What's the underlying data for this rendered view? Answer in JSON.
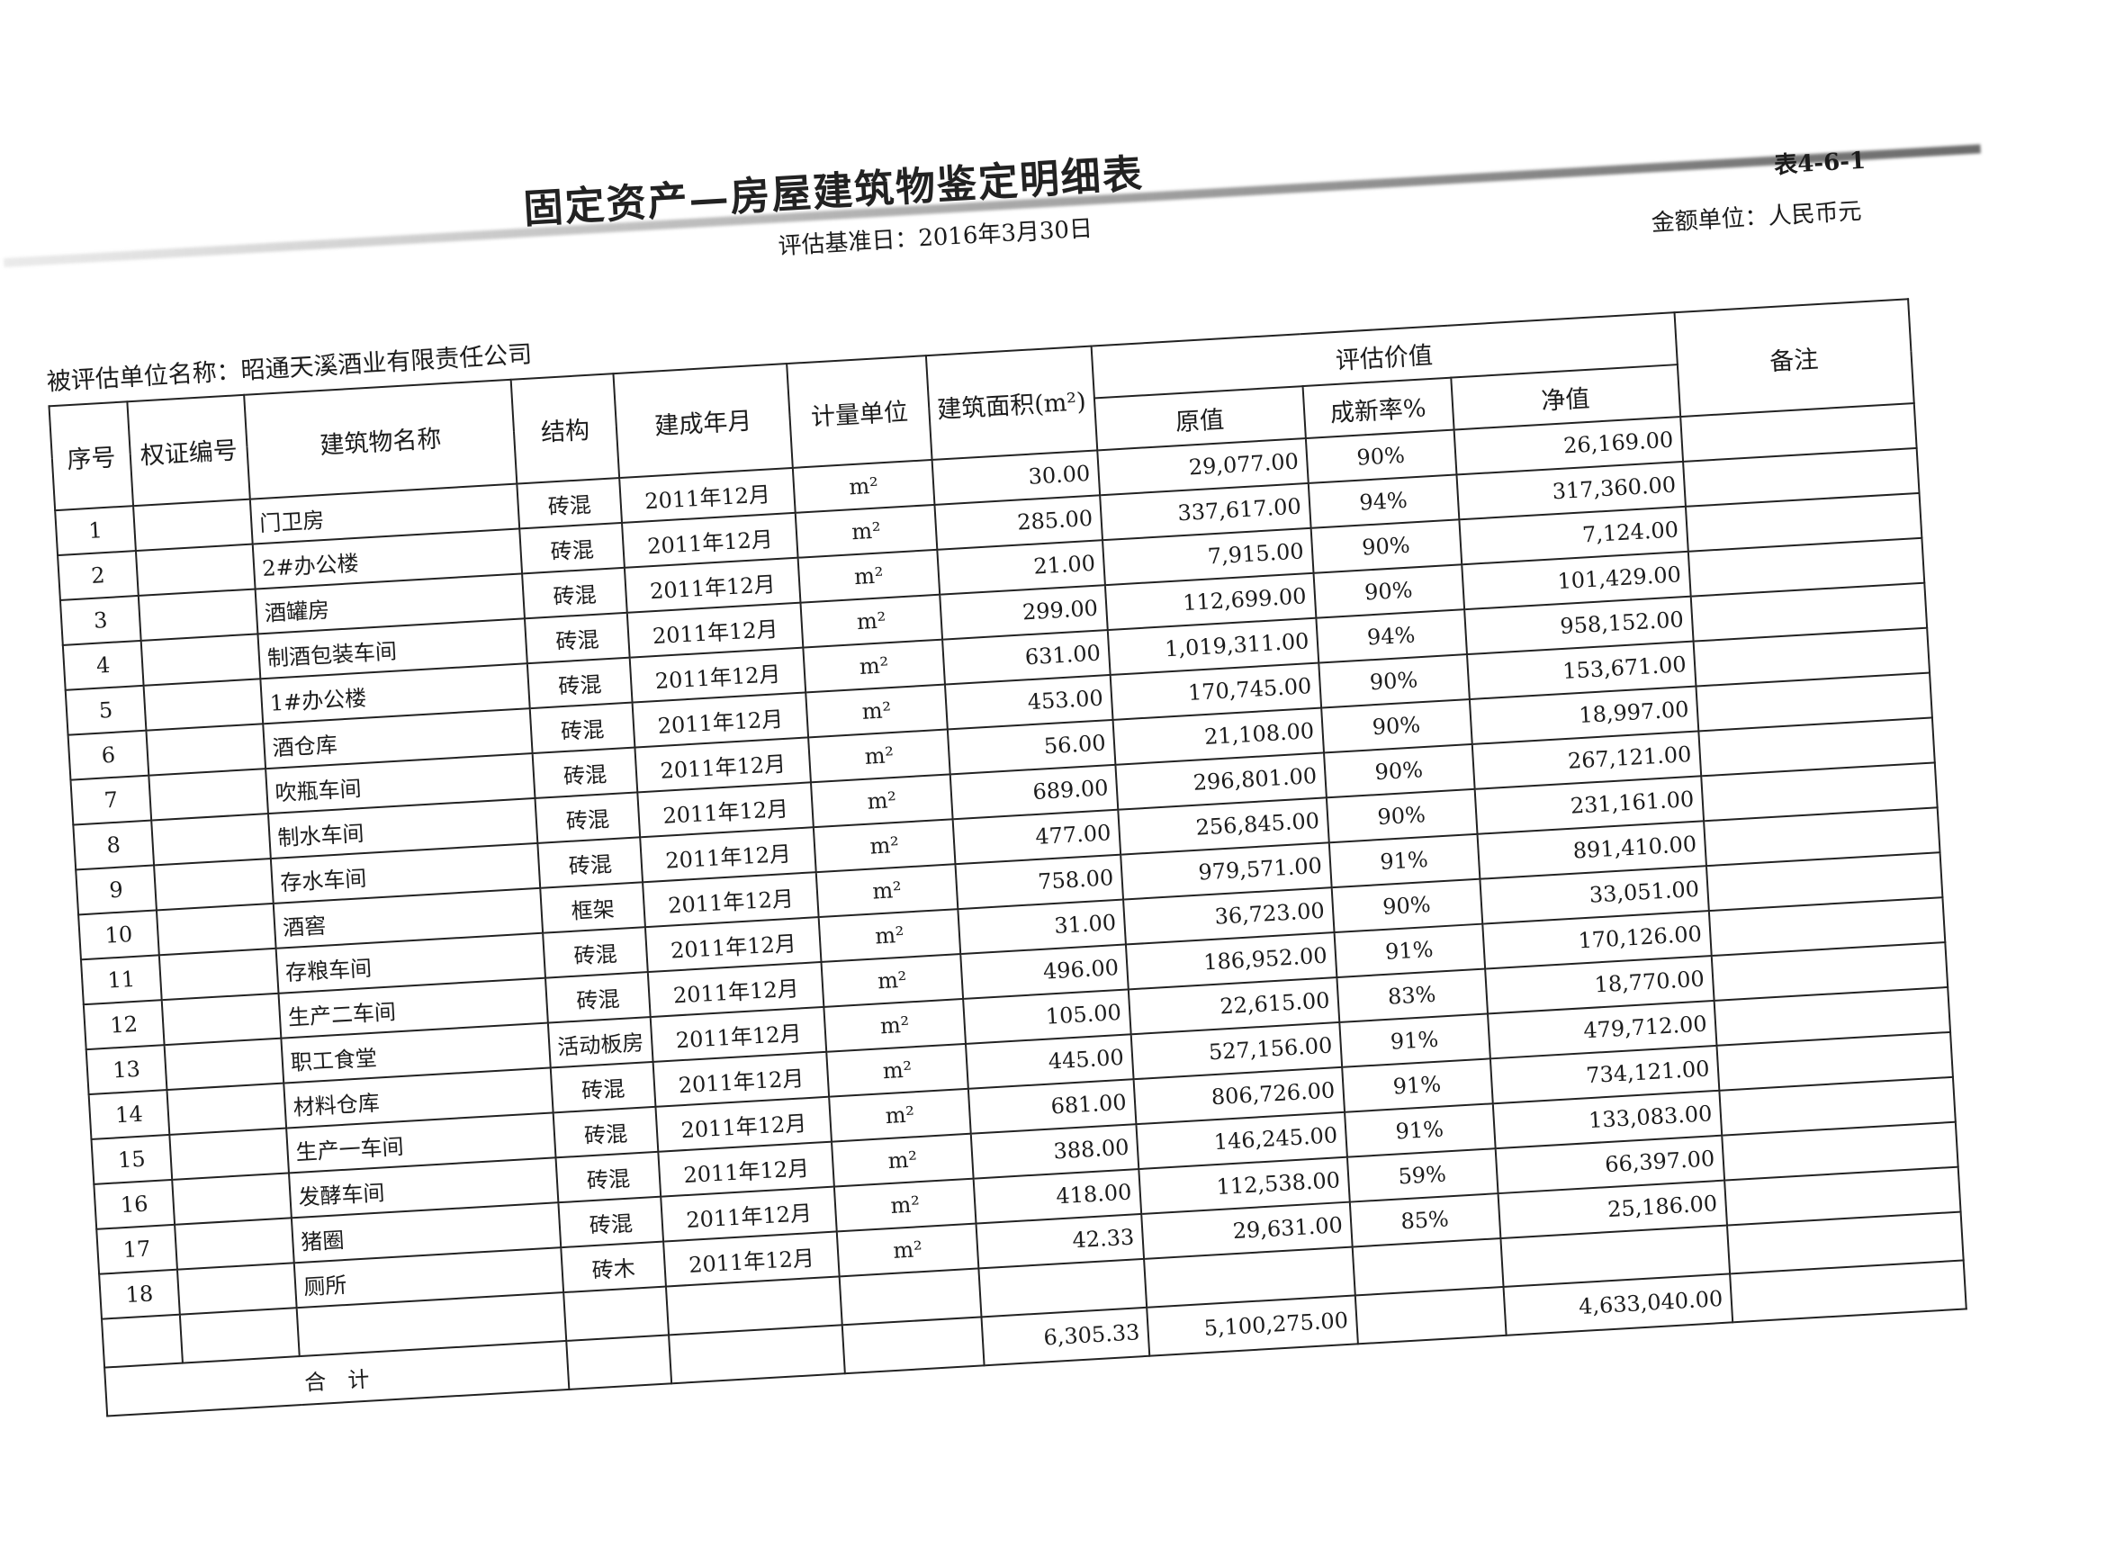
{
  "title": "固定资产—房屋建筑物鉴定明细表",
  "valuation_date": "评估基准日：2016年3月30日",
  "table_no": "表4-6-1",
  "currency_unit": "金额单位：人民币元",
  "entity": "被评估单位名称：昭通天溪酒业有限责任公司",
  "headers": {
    "index": "序号",
    "cert_no": "权证编号",
    "name": "建筑物名称",
    "structure": "结构",
    "built": "建成年月",
    "unit": "计量单位",
    "area": "建筑面积(m²)",
    "valuation": "评估价值",
    "original": "原值",
    "newness": "成新率%",
    "net": "净值",
    "remark": "备注"
  },
  "rows": [
    {
      "index": "1",
      "name": "门卫房",
      "structure": "砖混",
      "built": "2011年12月",
      "unit": "m²",
      "area": "30.00",
      "original": "29,077.00",
      "newness": "90%",
      "net": "26,169.00"
    },
    {
      "index": "2",
      "name": "2#办公楼",
      "structure": "砖混",
      "built": "2011年12月",
      "unit": "m²",
      "area": "285.00",
      "original": "337,617.00",
      "newness": "94%",
      "net": "317,360.00"
    },
    {
      "index": "3",
      "name": "酒罐房",
      "structure": "砖混",
      "built": "2011年12月",
      "unit": "m²",
      "area": "21.00",
      "original": "7,915.00",
      "newness": "90%",
      "net": "7,124.00"
    },
    {
      "index": "4",
      "name": "制酒包装车间",
      "structure": "砖混",
      "built": "2011年12月",
      "unit": "m²",
      "area": "299.00",
      "original": "112,699.00",
      "newness": "90%",
      "net": "101,429.00"
    },
    {
      "index": "5",
      "name": "1#办公楼",
      "structure": "砖混",
      "built": "2011年12月",
      "unit": "m²",
      "area": "631.00",
      "original": "1,019,311.00",
      "newness": "94%",
      "net": "958,152.00"
    },
    {
      "index": "6",
      "name": "酒仓库",
      "structure": "砖混",
      "built": "2011年12月",
      "unit": "m²",
      "area": "453.00",
      "original": "170,745.00",
      "newness": "90%",
      "net": "153,671.00"
    },
    {
      "index": "7",
      "name": "吹瓶车间",
      "structure": "砖混",
      "built": "2011年12月",
      "unit": "m²",
      "area": "56.00",
      "original": "21,108.00",
      "newness": "90%",
      "net": "18,997.00"
    },
    {
      "index": "8",
      "name": "制水车间",
      "structure": "砖混",
      "built": "2011年12月",
      "unit": "m²",
      "area": "689.00",
      "original": "296,801.00",
      "newness": "90%",
      "net": "267,121.00"
    },
    {
      "index": "9",
      "name": "存水车间",
      "structure": "砖混",
      "built": "2011年12月",
      "unit": "m²",
      "area": "477.00",
      "original": "256,845.00",
      "newness": "90%",
      "net": "231,161.00"
    },
    {
      "index": "10",
      "name": "酒窖",
      "structure": "框架",
      "built": "2011年12月",
      "unit": "m²",
      "area": "758.00",
      "original": "979,571.00",
      "newness": "91%",
      "net": "891,410.00"
    },
    {
      "index": "11",
      "name": "存粮车间",
      "structure": "砖混",
      "built": "2011年12月",
      "unit": "m²",
      "area": "31.00",
      "original": "36,723.00",
      "newness": "90%",
      "net": "33,051.00"
    },
    {
      "index": "12",
      "name": "生产二车间",
      "structure": "砖混",
      "built": "2011年12月",
      "unit": "m²",
      "area": "496.00",
      "original": "186,952.00",
      "newness": "91%",
      "net": "170,126.00"
    },
    {
      "index": "13",
      "name": "职工食堂",
      "structure": "活动板房",
      "built": "2011年12月",
      "unit": "m²",
      "area": "105.00",
      "original": "22,615.00",
      "newness": "83%",
      "net": "18,770.00"
    },
    {
      "index": "14",
      "name": "材料仓库",
      "structure": "砖混",
      "built": "2011年12月",
      "unit": "m²",
      "area": "445.00",
      "original": "527,156.00",
      "newness": "91%",
      "net": "479,712.00"
    },
    {
      "index": "15",
      "name": "生产一车间",
      "structure": "砖混",
      "built": "2011年12月",
      "unit": "m²",
      "area": "681.00",
      "original": "806,726.00",
      "newness": "91%",
      "net": "734,121.00"
    },
    {
      "index": "16",
      "name": "发酵车间",
      "structure": "砖混",
      "built": "2011年12月",
      "unit": "m²",
      "area": "388.00",
      "original": "146,245.00",
      "newness": "91%",
      "net": "133,083.00"
    },
    {
      "index": "17",
      "name": "猪圈",
      "structure": "砖混",
      "built": "2011年12月",
      "unit": "m²",
      "area": "418.00",
      "original": "112,538.00",
      "newness": "59%",
      "net": "66,397.00"
    },
    {
      "index": "18",
      "name": "厕所",
      "structure": "砖木",
      "built": "2011年12月",
      "unit": "m²",
      "area": "42.33",
      "original": "29,631.00",
      "newness": "85%",
      "net": "25,186.00"
    }
  ],
  "total": {
    "label": "合　计",
    "area": "6,305.33",
    "original": "5,100,275.00",
    "net": "4,633,040.00"
  }
}
